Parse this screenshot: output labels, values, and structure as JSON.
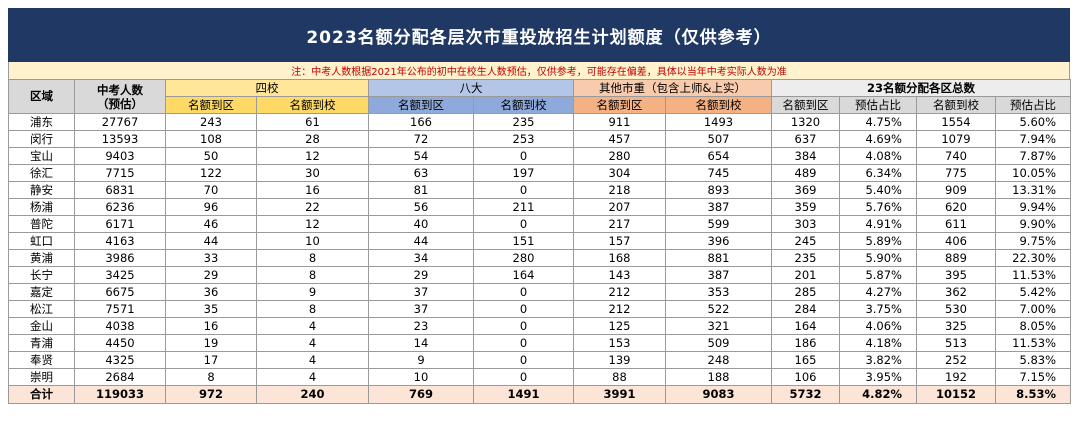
{
  "title": "2023名额分配各层次市重投放招生计划额度（仅供参考）",
  "note": "注：中考人数根据2021年公布的初中在校生人数预估，仅供参考，可能存在偏差，具体以当年中考实际人数为准",
  "headers": {
    "district": "区域",
    "exam_count_line1": "中考人数",
    "exam_count_line2": "（预估）",
    "group_four": "四校",
    "group_eight": "八大",
    "group_other": "其他市重（包含上师&上实）",
    "group_total": "23名额分配各区总数",
    "to_district": "名额到区",
    "to_school": "名额到校",
    "ratio": "预估占比"
  },
  "rows": [
    {
      "d": "浦东",
      "n": "27767",
      "a": "243",
      "b": "61",
      "c": "166",
      "e": "235",
      "f": "911",
      "g": "1493",
      "h": "1320",
      "i": "4.75%",
      "j": "1554",
      "k": "5.60%"
    },
    {
      "d": "闵行",
      "n": "13593",
      "a": "108",
      "b": "28",
      "c": "72",
      "e": "253",
      "f": "457",
      "g": "507",
      "h": "637",
      "i": "4.69%",
      "j": "1079",
      "k": "7.94%"
    },
    {
      "d": "宝山",
      "n": "9403",
      "a": "50",
      "b": "12",
      "c": "54",
      "e": "0",
      "f": "280",
      "g": "654",
      "h": "384",
      "i": "4.08%",
      "j": "740",
      "k": "7.87%"
    },
    {
      "d": "徐汇",
      "n": "7715",
      "a": "122",
      "b": "30",
      "c": "63",
      "e": "197",
      "f": "304",
      "g": "745",
      "h": "489",
      "i": "6.34%",
      "j": "775",
      "k": "10.05%"
    },
    {
      "d": "静安",
      "n": "6831",
      "a": "70",
      "b": "16",
      "c": "81",
      "e": "0",
      "f": "218",
      "g": "893",
      "h": "369",
      "i": "5.40%",
      "j": "909",
      "k": "13.31%"
    },
    {
      "d": "杨浦",
      "n": "6236",
      "a": "96",
      "b": "22",
      "c": "56",
      "e": "211",
      "f": "207",
      "g": "387",
      "h": "359",
      "i": "5.76%",
      "j": "620",
      "k": "9.94%"
    },
    {
      "d": "普陀",
      "n": "6171",
      "a": "46",
      "b": "12",
      "c": "40",
      "e": "0",
      "f": "217",
      "g": "599",
      "h": "303",
      "i": "4.91%",
      "j": "611",
      "k": "9.90%"
    },
    {
      "d": "虹口",
      "n": "4163",
      "a": "44",
      "b": "10",
      "c": "44",
      "e": "151",
      "f": "157",
      "g": "396",
      "h": "245",
      "i": "5.89%",
      "j": "406",
      "k": "9.75%"
    },
    {
      "d": "黄浦",
      "n": "3986",
      "a": "33",
      "b": "8",
      "c": "34",
      "e": "280",
      "f": "168",
      "g": "881",
      "h": "235",
      "i": "5.90%",
      "j": "889",
      "k": "22.30%"
    },
    {
      "d": "长宁",
      "n": "3425",
      "a": "29",
      "b": "8",
      "c": "29",
      "e": "164",
      "f": "143",
      "g": "387",
      "h": "201",
      "i": "5.87%",
      "j": "395",
      "k": "11.53%"
    },
    {
      "d": "嘉定",
      "n": "6675",
      "a": "36",
      "b": "9",
      "c": "37",
      "e": "0",
      "f": "212",
      "g": "353",
      "h": "285",
      "i": "4.27%",
      "j": "362",
      "k": "5.42%"
    },
    {
      "d": "松江",
      "n": "7571",
      "a": "35",
      "b": "8",
      "c": "37",
      "e": "0",
      "f": "212",
      "g": "522",
      "h": "284",
      "i": "3.75%",
      "j": "530",
      "k": "7.00%"
    },
    {
      "d": "金山",
      "n": "4038",
      "a": "16",
      "b": "4",
      "c": "23",
      "e": "0",
      "f": "125",
      "g": "321",
      "h": "164",
      "i": "4.06%",
      "j": "325",
      "k": "8.05%"
    },
    {
      "d": "青浦",
      "n": "4450",
      "a": "19",
      "b": "4",
      "c": "14",
      "e": "0",
      "f": "153",
      "g": "509",
      "h": "186",
      "i": "4.18%",
      "j": "513",
      "k": "11.53%"
    },
    {
      "d": "奉贤",
      "n": "4325",
      "a": "17",
      "b": "4",
      "c": "9",
      "e": "0",
      "f": "139",
      "g": "248",
      "h": "165",
      "i": "3.82%",
      "j": "252",
      "k": "5.83%"
    },
    {
      "d": "崇明",
      "n": "2684",
      "a": "8",
      "b": "4",
      "c": "10",
      "e": "0",
      "f": "88",
      "g": "188",
      "h": "106",
      "i": "3.95%",
      "j": "192",
      "k": "7.15%"
    }
  ],
  "total": {
    "d": "合计",
    "n": "119033",
    "a": "972",
    "b": "240",
    "c": "769",
    "e": "1491",
    "f": "3991",
    "g": "9083",
    "h": "5732",
    "i": "4.82%",
    "j": "10152",
    "k": "8.53%"
  }
}
